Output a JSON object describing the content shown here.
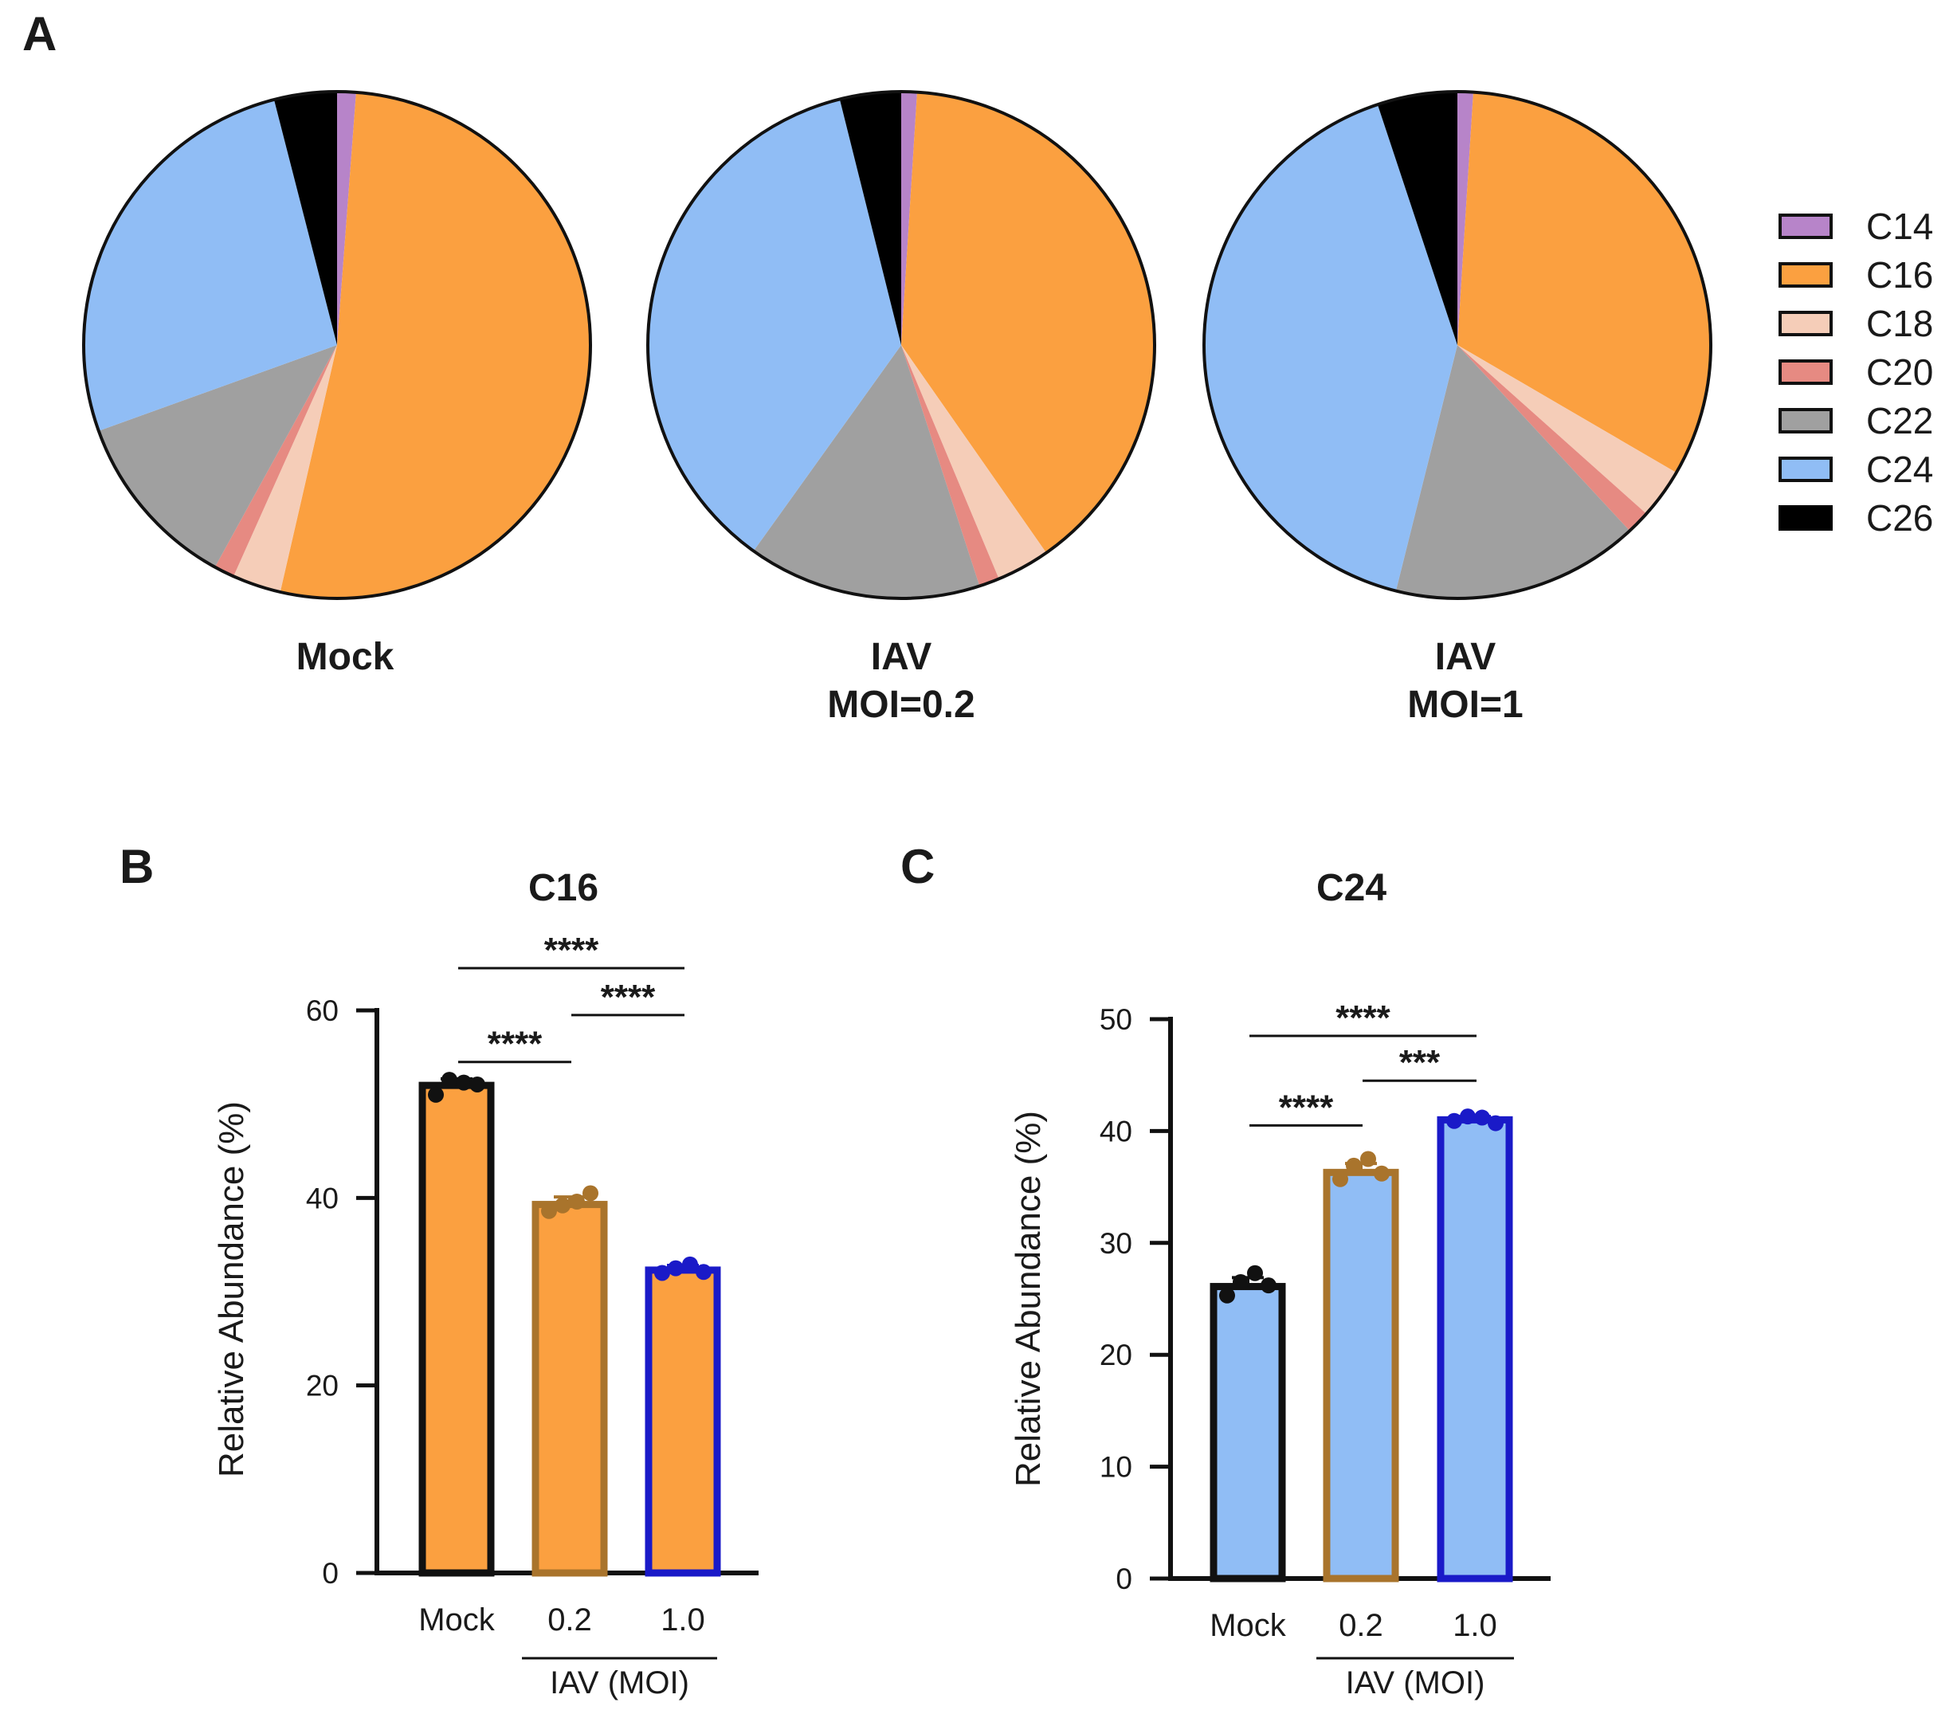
{
  "figure_labels": {
    "panel_a": "A",
    "panel_b": "B",
    "panel_c": "C"
  },
  "colors": {
    "C14": "#b784c9",
    "C16": "#fba040",
    "C18": "#f5cdb8",
    "C20": "#e68a82",
    "C22": "#a0a0a0",
    "C24": "#90bdf5",
    "C26": "#000000",
    "mock_edge": "#111111",
    "moi02_edge": "#a9742c",
    "moi1_edge": "#1a1ac8"
  },
  "chart_data": [
    {
      "type": "pie",
      "id": "pie_mock",
      "label_lines": [
        "Mock"
      ],
      "categories": [
        "C14",
        "C16",
        "C18",
        "C20",
        "C22",
        "C24",
        "C26"
      ],
      "values": [
        1.2,
        52.4,
        3.1,
        1.3,
        11.5,
        26.5,
        4.0
      ]
    },
    {
      "type": "pie",
      "id": "pie_moi02",
      "label_lines": [
        "IAV",
        "MOI=0.2"
      ],
      "categories": [
        "C14",
        "C16",
        "C18",
        "C20",
        "C22",
        "C24",
        "C26"
      ],
      "values": [
        1.0,
        39.3,
        3.4,
        1.3,
        14.9,
        36.2,
        3.9
      ]
    },
    {
      "type": "pie",
      "id": "pie_moi1",
      "label_lines": [
        "IAV",
        "MOI=1"
      ],
      "categories": [
        "C14",
        "C16",
        "C18",
        "C20",
        "C22",
        "C24",
        "C26"
      ],
      "values": [
        1.0,
        32.4,
        3.2,
        1.5,
        15.8,
        41.0,
        5.1
      ]
    },
    {
      "type": "legend",
      "entries": [
        "C14",
        "C16",
        "C18",
        "C20",
        "C22",
        "C24",
        "C26"
      ]
    },
    {
      "type": "bar",
      "id": "bar_c16",
      "title": "C16",
      "ylabel": "Relative Abundance (%)",
      "ylim": [
        0,
        60
      ],
      "yticks": [
        0,
        20,
        40,
        60
      ],
      "categories": [
        "Mock",
        "0.2",
        "1.0"
      ],
      "group_label": "IAV (MOI)",
      "fill_key": "C16",
      "values": [
        52.0,
        39.3,
        32.3
      ],
      "errors": [
        0.7,
        0.8,
        0.5
      ],
      "points": [
        [
          51.0,
          52.6,
          52.3,
          52.1
        ],
        [
          38.6,
          39.2,
          39.6,
          40.5
        ],
        [
          32.0,
          32.5,
          32.9,
          32.1
        ]
      ],
      "significance": [
        {
          "from": 0,
          "to": 1,
          "text": "****",
          "y": 54.5
        },
        {
          "from": 1,
          "to": 2,
          "text": "****",
          "y": 59.5
        },
        {
          "from": 0,
          "to": 2,
          "text": "****",
          "y": 64.5
        }
      ]
    },
    {
      "type": "bar",
      "id": "bar_c24",
      "title": "C24",
      "ylabel": "Relative Abundance (%)",
      "ylim": [
        0,
        50
      ],
      "yticks": [
        0,
        10,
        20,
        30,
        40,
        50
      ],
      "categories": [
        "Mock",
        "0.2",
        "1.0"
      ],
      "group_label": "IAV (MOI)",
      "fill_key": "C24",
      "values": [
        26.1,
        36.3,
        41.0
      ],
      "errors": [
        0.8,
        0.8,
        0.3
      ],
      "points": [
        [
          25.3,
          26.5,
          27.3,
          26.2
        ],
        [
          35.7,
          36.9,
          37.5,
          36.2
        ],
        [
          40.9,
          41.3,
          41.2,
          40.7
        ]
      ],
      "significance": [
        {
          "from": 0,
          "to": 1,
          "text": "****",
          "y": 40.5
        },
        {
          "from": 1,
          "to": 2,
          "text": "***",
          "y": 44.5
        },
        {
          "from": 0,
          "to": 2,
          "text": "****",
          "y": 48.5
        }
      ]
    }
  ]
}
